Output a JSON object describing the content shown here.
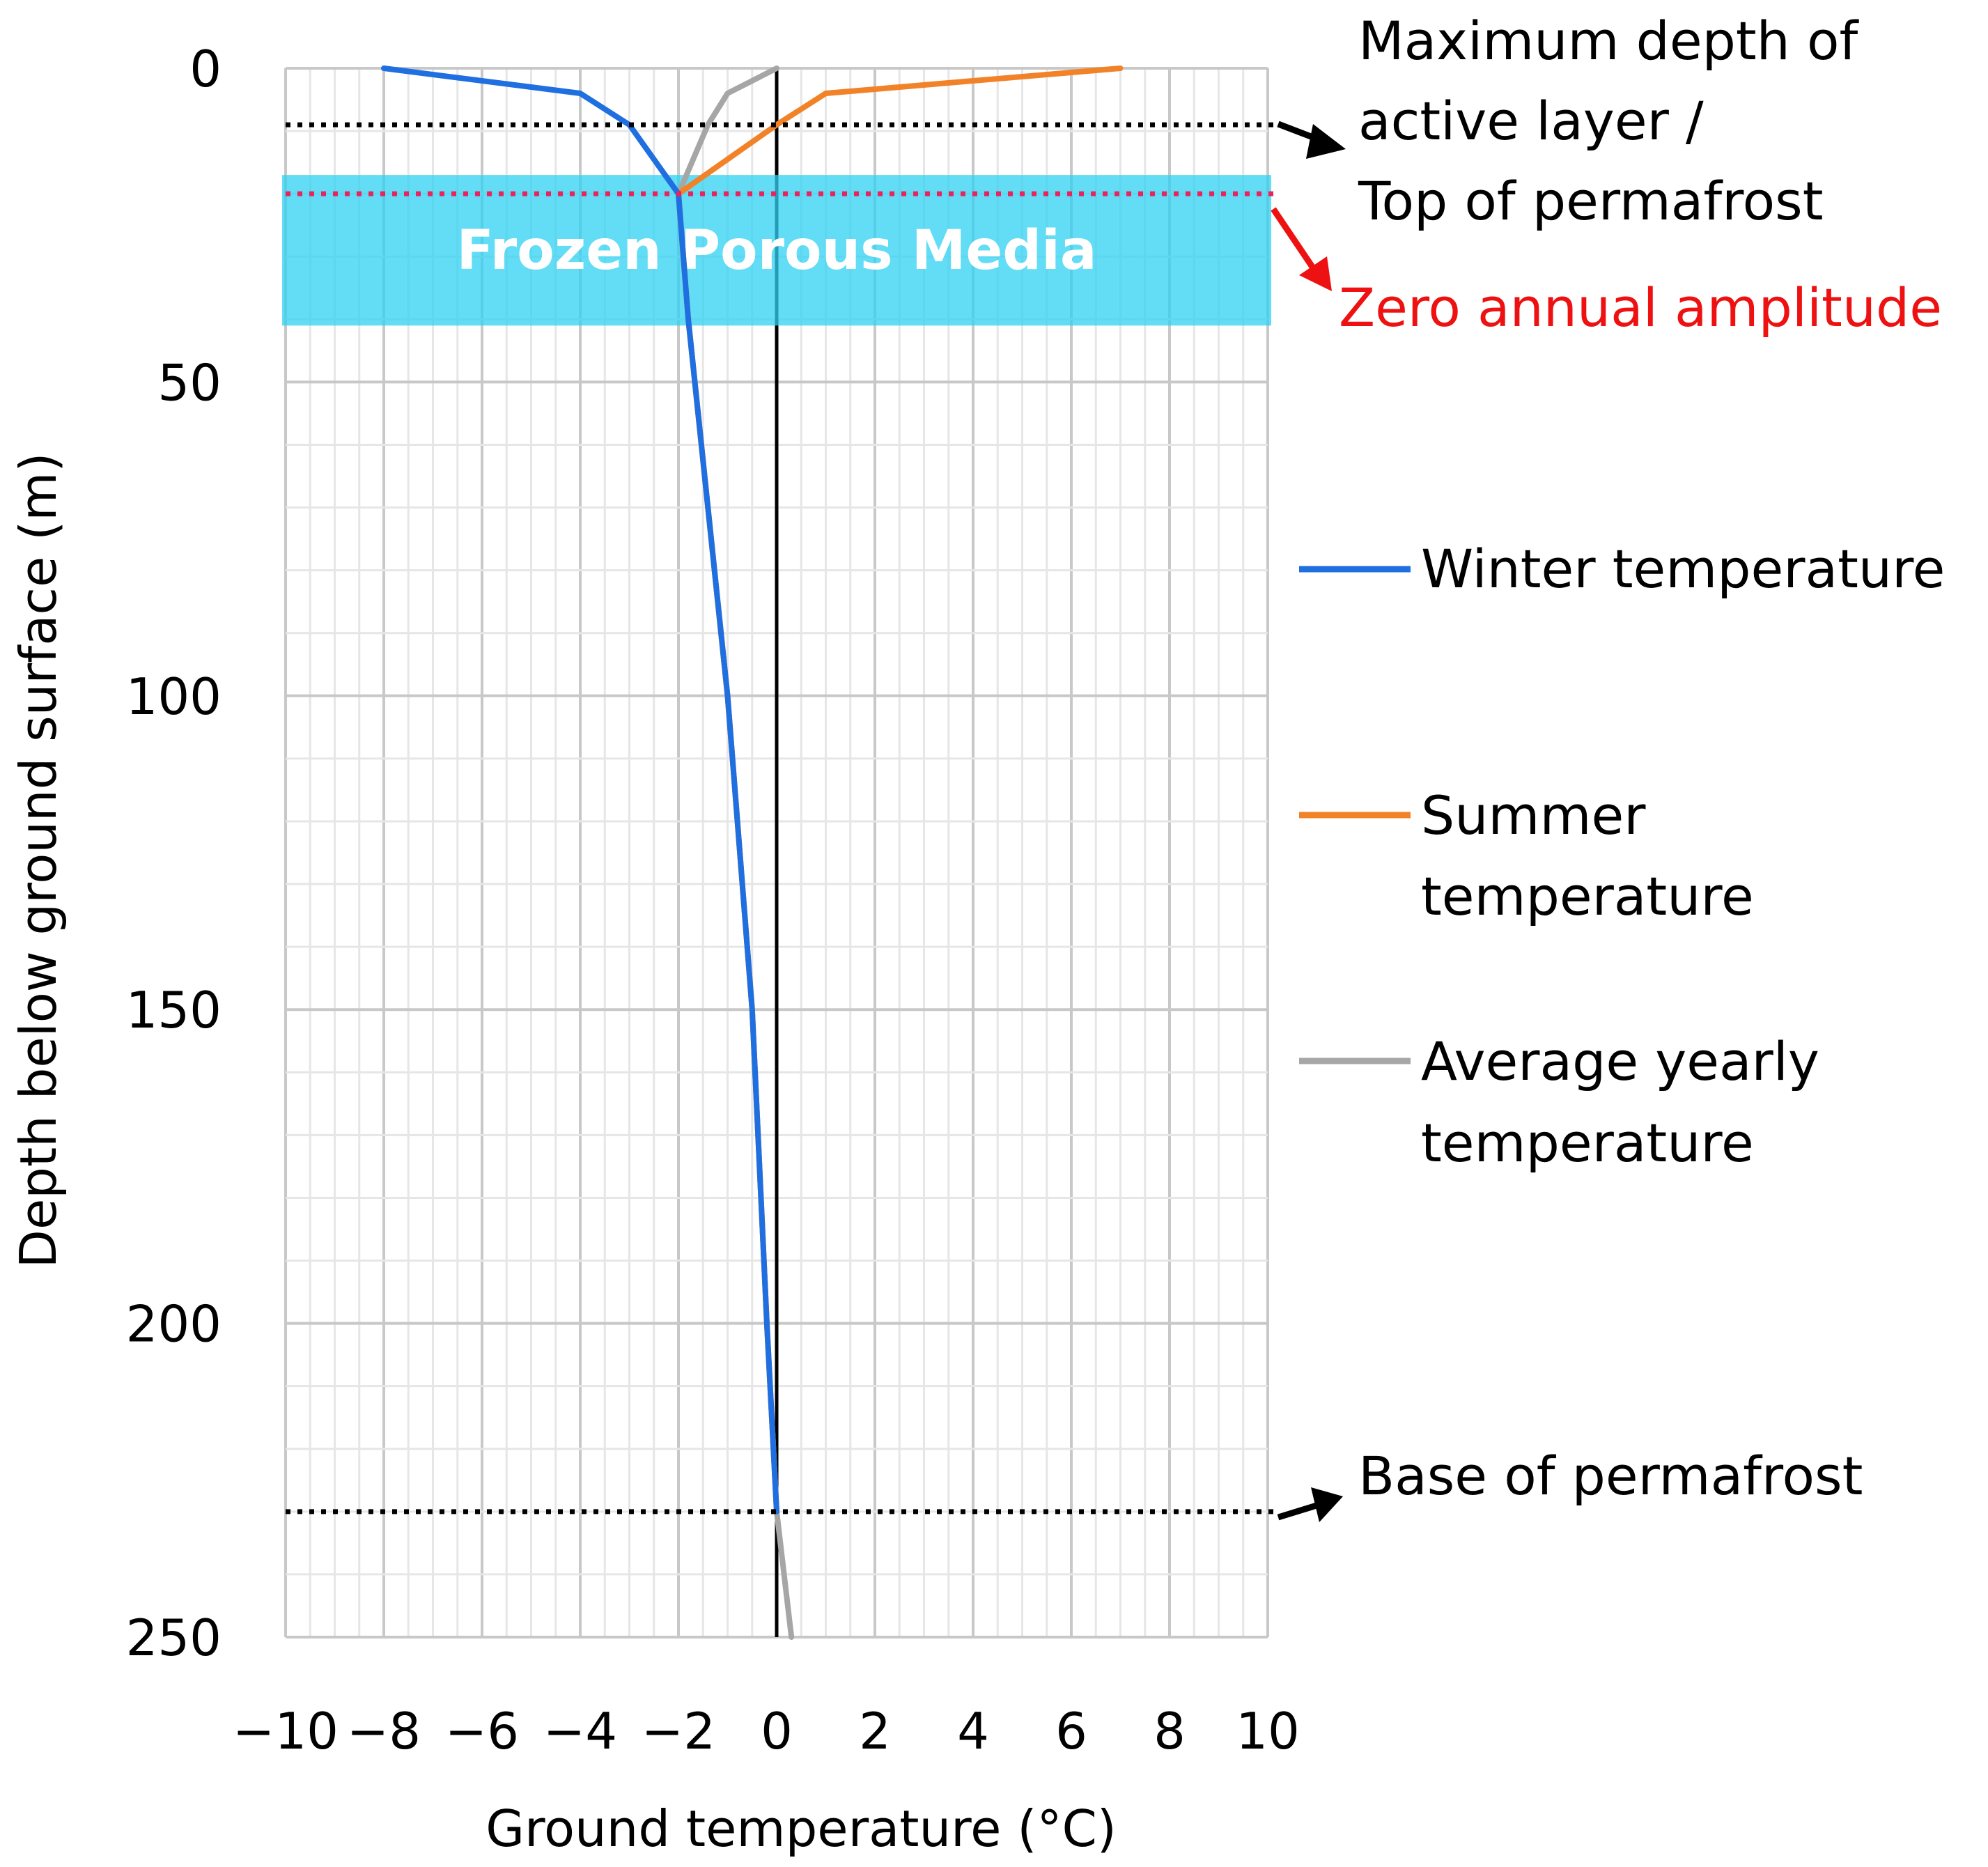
{
  "chart_data": {
    "type": "line",
    "xlabel": "Ground temperature (°C)",
    "ylabel": "Depth below ground surface (m)",
    "xlim": [
      -10,
      10
    ],
    "ylim": [
      0,
      250
    ],
    "y_inverted": true,
    "x_ticks": [
      "−10",
      "−8",
      "−6",
      "−4",
      "−2",
      "0",
      "2",
      "4",
      "6",
      "8",
      "10"
    ],
    "y_ticks": [
      "0",
      "50",
      "100",
      "150",
      "200",
      "250"
    ],
    "x_tick_values": [
      -10,
      -8,
      -6,
      -4,
      -2,
      0,
      2,
      4,
      6,
      8,
      10
    ],
    "y_tick_values": [
      0,
      50,
      100,
      150,
      200,
      250
    ],
    "grid": true,
    "series": [
      {
        "name": "Winter temperature",
        "color": "#1f6fe0",
        "points": [
          [
            -8,
            0
          ],
          [
            -4,
            4
          ],
          [
            -3,
            9
          ],
          [
            -2,
            20
          ],
          [
            -1.9,
            30
          ],
          [
            -1.8,
            40
          ],
          [
            -1,
            100
          ],
          [
            -0.5,
            150
          ],
          [
            -0.2,
            200
          ],
          [
            0,
            230
          ]
        ]
      },
      {
        "name": "Summer temperature",
        "color": "#f28228",
        "points": [
          [
            7,
            0
          ],
          [
            1,
            4
          ],
          [
            0,
            9
          ],
          [
            -2,
            20
          ],
          [
            -1.9,
            30
          ],
          [
            -1.8,
            40
          ],
          [
            -1,
            100
          ],
          [
            -0.5,
            150
          ],
          [
            -0.2,
            200
          ],
          [
            0,
            230
          ]
        ]
      },
      {
        "name": "Average yearly temperature",
        "color": "#a6a6a6",
        "points": [
          [
            0,
            0
          ],
          [
            -1,
            4
          ],
          [
            -1.4,
            9
          ],
          [
            -2,
            20
          ],
          [
            -1.9,
            30
          ],
          [
            -1.8,
            40
          ],
          [
            -1,
            100
          ],
          [
            -0.5,
            150
          ],
          [
            -0.2,
            200
          ],
          [
            0,
            230
          ],
          [
            0.3,
            250
          ]
        ]
      }
    ],
    "band": {
      "label": "Frozen Porous Media",
      "y_from": 17,
      "y_to": 41,
      "color": "#2dd2f2"
    },
    "reference_lines": [
      {
        "depth": 9,
        "color": "#000000",
        "label": "Maximum depth of active layer / Top of permafrost"
      },
      {
        "depth": 20,
        "color": "#e8245c",
        "label": "Zero annual amplitude"
      },
      {
        "depth": 230,
        "color": "#000000",
        "label": "Base of permafrost"
      }
    ]
  },
  "annotations": {
    "active_layer": [
      "Maximum depth of",
      "active layer /",
      "Top of permafrost"
    ],
    "zero_amplitude": "Zero annual amplitude",
    "base": "Base of permafrost",
    "band_label": "Frozen Porous Media",
    "zero_color": "#ee1111"
  },
  "legend": {
    "winter": [
      "Winter temperature"
    ],
    "summer": [
      "Summer",
      "temperature"
    ],
    "average": [
      "Average yearly",
      "temperature"
    ]
  }
}
